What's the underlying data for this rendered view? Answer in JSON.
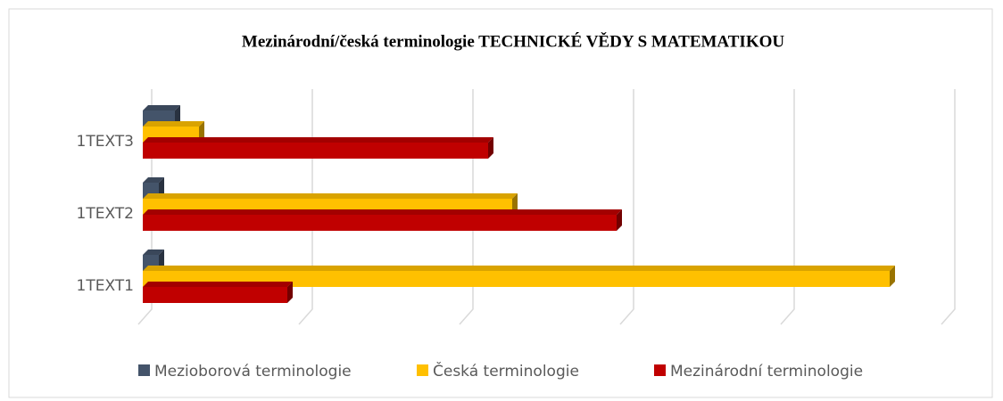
{
  "chart_data": {
    "type": "bar3d-horizontal",
    "title": "Mezinárodní/česká terminologie TECHNICKÉ VĚDY S MATEMATIKOU",
    "categories": [
      "1TEXT1",
      "1TEXT2",
      "1TEXT3"
    ],
    "series": [
      {
        "name": "Mezioborová terminologie",
        "color": "#44546a",
        "values": [
          1,
          1,
          2
        ]
      },
      {
        "name": "Česká terminologie",
        "color": "#ffc000",
        "values": [
          46.5,
          23,
          3.5
        ]
      },
      {
        "name": "Mezinárodní terminologie",
        "color": "#c00000",
        "values": [
          9,
          29.5,
          21.5
        ]
      }
    ],
    "xlim": [
      0,
      50
    ],
    "xticks": [
      0,
      10,
      20,
      30,
      40,
      50
    ],
    "grid": true,
    "legend": "bottom"
  }
}
